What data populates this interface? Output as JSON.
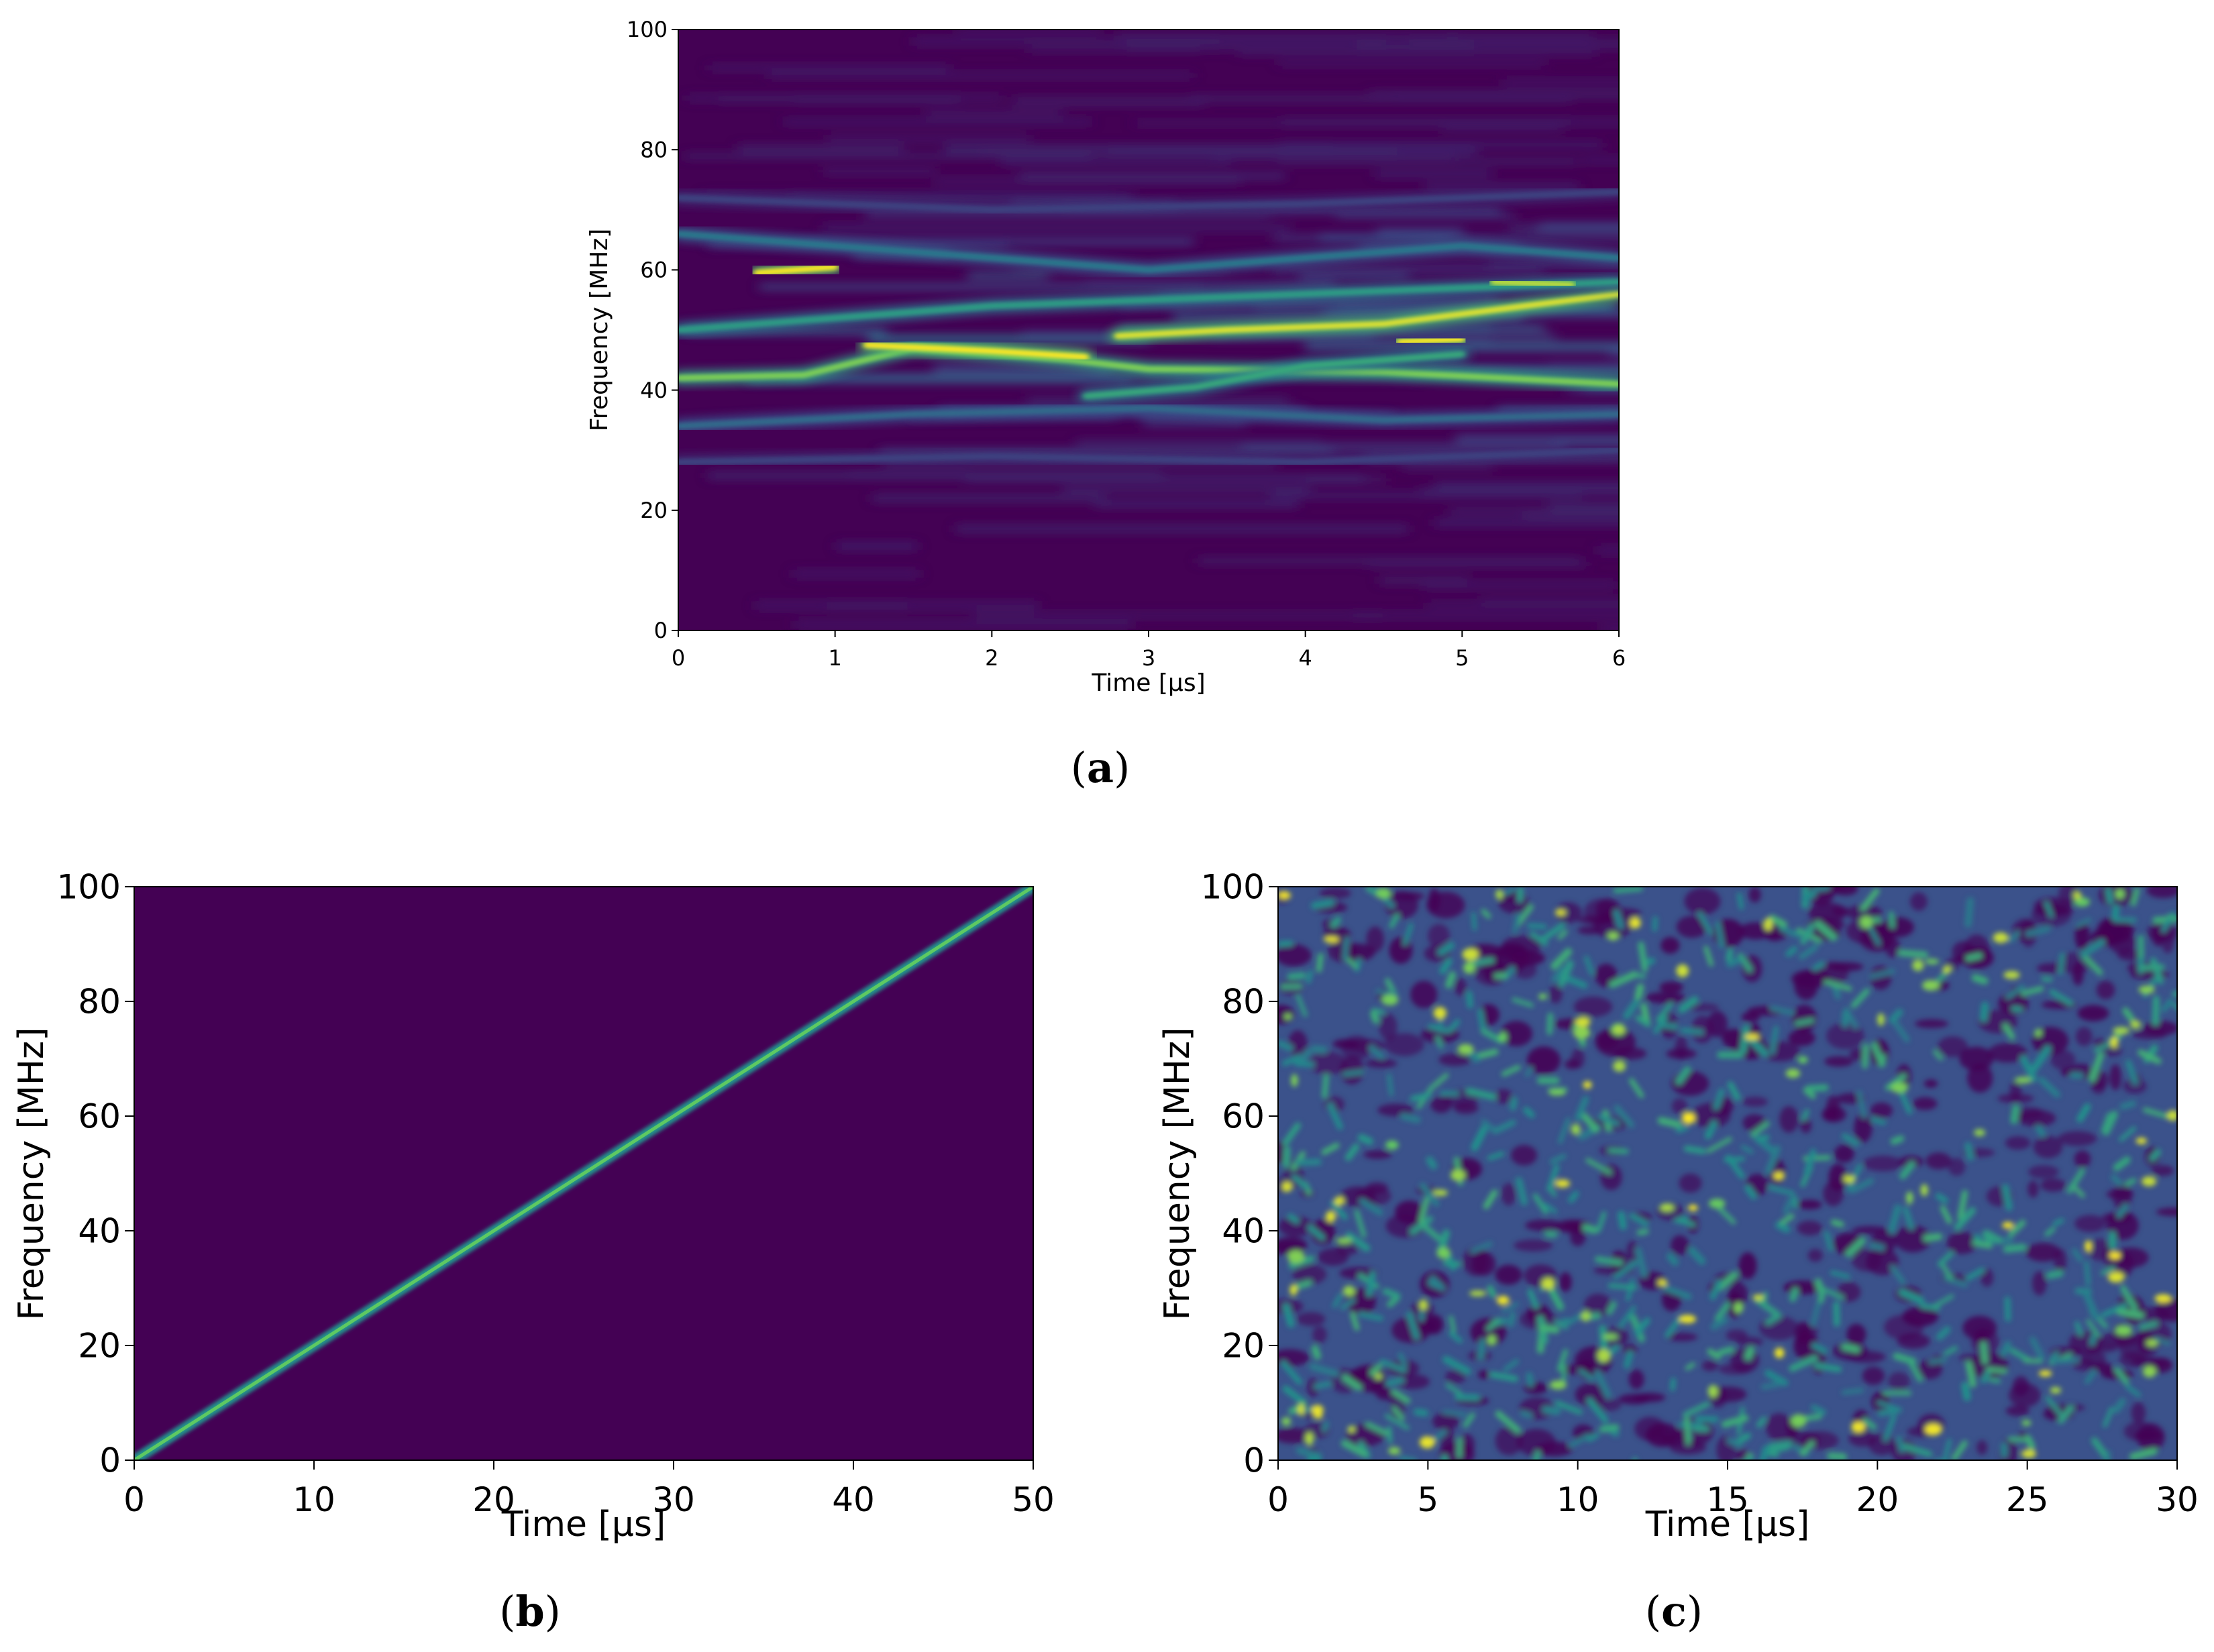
{
  "chart_data": [
    {
      "id": "a",
      "type": "heatmap",
      "subtype": "spectrogram",
      "caption_letter": "a",
      "xlabel": "Time [μs]",
      "ylabel": "Frequency [MHz]",
      "xlim": [
        0,
        6
      ],
      "ylim": [
        0,
        100
      ],
      "xticks": [
        0,
        1,
        2,
        3,
        4,
        5,
        6
      ],
      "yticks": [
        0,
        20,
        40,
        60,
        80,
        100
      ],
      "colormap": "viridis",
      "description_bands": [
        {
          "name": "",
          "points": [
            [
              0,
              34
            ],
            [
              1.5,
              36
            ],
            [
              3,
              37
            ],
            [
              4.5,
              35
            ],
            [
              6,
              36
            ]
          ],
          "intensity": 0.35
        },
        {
          "name": "",
          "points": [
            [
              0,
              42
            ],
            [
              0.8,
              42.5
            ],
            [
              1.5,
              47
            ],
            [
              2.5,
              45
            ],
            [
              3,
              43.5
            ],
            [
              4.5,
              43
            ],
            [
              6,
              41
            ]
          ],
          "intensity": 0.8
        },
        {
          "name": "",
          "points": [
            [
              1.2,
              47.5
            ],
            [
              2,
              46.5
            ],
            [
              2.6,
              45.5
            ]
          ],
          "intensity": 1.0
        },
        {
          "name": "",
          "points": [
            [
              2.6,
              39
            ],
            [
              3.3,
              40.5
            ],
            [
              4,
              44
            ],
            [
              5,
              46
            ]
          ],
          "intensity": 0.6
        },
        {
          "name": "",
          "points": [
            [
              2.8,
              49
            ],
            [
              3.5,
              50
            ],
            [
              4.5,
              51
            ],
            [
              5.4,
              54
            ],
            [
              6,
              56
            ]
          ],
          "intensity": 0.95
        },
        {
          "name": "",
          "points": [
            [
              4.6,
              48
            ],
            [
              5.0,
              48.5
            ]
          ],
          "intensity": 1.0
        },
        {
          "name": "",
          "points": [
            [
              0,
              50
            ],
            [
              1.0,
              52
            ],
            [
              2,
              54
            ],
            [
              3,
              55
            ],
            [
              4,
              56
            ],
            [
              5,
              57
            ],
            [
              6,
              58
            ]
          ],
          "intensity": 0.55
        },
        {
          "name": "",
          "points": [
            [
              0.5,
              59.5
            ],
            [
              1.0,
              60.5
            ]
          ],
          "intensity": 1.0
        },
        {
          "name": "",
          "points": [
            [
              5.2,
              58
            ],
            [
              5.7,
              57.5
            ]
          ],
          "intensity": 0.9
        },
        {
          "name": "",
          "points": [
            [
              0,
              66
            ],
            [
              1,
              64
            ],
            [
              2,
              62
            ],
            [
              3,
              60
            ],
            [
              4,
              62
            ],
            [
              5,
              64
            ],
            [
              6,
              62
            ]
          ],
          "intensity": 0.4
        },
        {
          "name": "",
          "points": [
            [
              0,
              28
            ],
            [
              2,
              29
            ],
            [
              4,
              28
            ],
            [
              6,
              30
            ]
          ],
          "intensity": 0.2
        },
        {
          "name": "",
          "points": [
            [
              0,
              72
            ],
            [
              2,
              70
            ],
            [
              4,
              71
            ],
            [
              6,
              73
            ]
          ],
          "intensity": 0.2
        }
      ]
    },
    {
      "id": "b",
      "type": "heatmap",
      "subtype": "spectrogram",
      "caption_letter": "b",
      "xlabel": "Time [μs]",
      "ylabel": "Frequency [MHz]",
      "xlim": [
        0,
        50
      ],
      "ylim": [
        0,
        100
      ],
      "xticks": [
        0,
        10,
        20,
        30,
        40,
        50
      ],
      "yticks": [
        0,
        20,
        40,
        60,
        80,
        100
      ],
      "colormap": "viridis",
      "line": {
        "x": [
          0,
          50
        ],
        "y": [
          0,
          100
        ]
      }
    },
    {
      "id": "c",
      "type": "heatmap",
      "subtype": "spectrogram",
      "caption_letter": "c",
      "xlabel": "Time [μs]",
      "ylabel": "Frequency [MHz]",
      "xlim": [
        0,
        30
      ],
      "ylim": [
        0,
        100
      ],
      "xticks": [
        0,
        5,
        10,
        15,
        20,
        25,
        30
      ],
      "yticks": [
        0,
        20,
        40,
        60,
        80,
        100
      ],
      "colormap": "viridis",
      "pattern": "random speckle"
    }
  ],
  "colors": {
    "viridis_low": "#440154",
    "viridis_lowmid": "#3b528b",
    "viridis_mid": "#21918c",
    "viridis_highmid": "#5ec962",
    "viridis_high": "#fde725"
  }
}
